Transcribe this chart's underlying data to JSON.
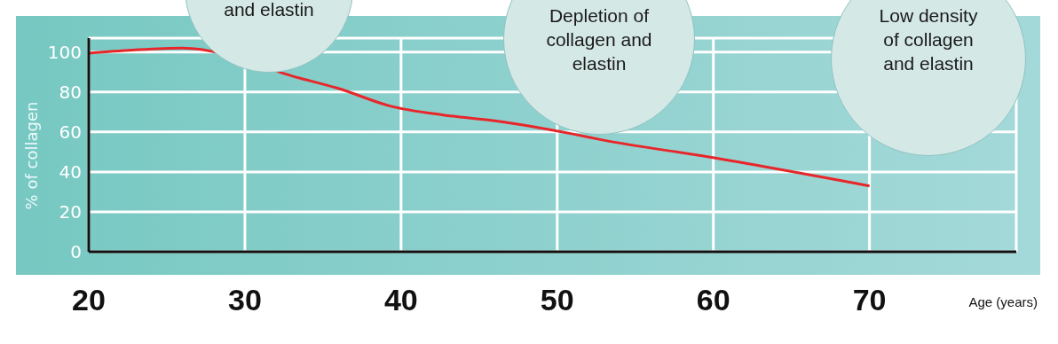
{
  "chart_data": {
    "type": "line",
    "xlabel": "Age (years)",
    "ylabel": "% of collagen",
    "x": [
      20,
      22.8,
      26,
      33.5,
      35.9,
      39.3,
      42.7,
      46.1,
      51,
      52.9,
      59.7,
      70
    ],
    "series": [
      {
        "color": "#e8262a",
        "values": [
          99.5,
          101,
          102,
          87,
          82,
          73,
          68.5,
          65.5,
          59,
          56,
          47.5,
          33
        ]
      }
    ],
    "xlim": [
      20,
      79.4
    ],
    "legend": false,
    "xticks": [
      20,
      30,
      40,
      50,
      60,
      70
    ],
    "ylim": [
      0,
      107
    ],
    "yticks": [
      0,
      20,
      40,
      60,
      80,
      100
    ],
    "grid": true,
    "marker": "none",
    "line_style": "solid",
    "annotations": [
      "and elastin",
      "Depletion of collagen and elastin",
      "Low density of collagen and elastin"
    ]
  }
}
